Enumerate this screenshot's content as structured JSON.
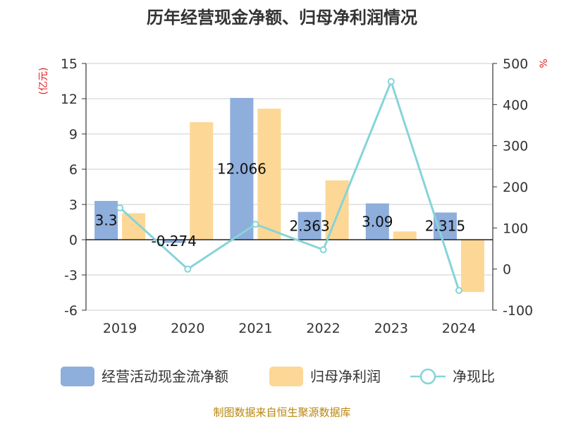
{
  "title": "历年经营现金净额、归母净利润情况",
  "source": "制图数据来自恒生聚源数据库",
  "chart_data": {
    "type": "bar",
    "categories": [
      "2019",
      "2020",
      "2021",
      "2022",
      "2023",
      "2024"
    ],
    "y_left": {
      "unit": "(亿元)",
      "ylim": [
        -6,
        15
      ],
      "ticks": [
        "15",
        "12",
        "9",
        "6",
        "3",
        "0",
        "-3",
        "-6"
      ],
      "tick_values": [
        15,
        12,
        9,
        6,
        3,
        0,
        -3,
        -6
      ]
    },
    "y_right": {
      "unit": "%",
      "ylim": [
        -100,
        500
      ],
      "ticks": [
        "500",
        "400",
        "300",
        "200",
        "100",
        "0",
        "-100"
      ],
      "tick_values": [
        500,
        400,
        300,
        200,
        100,
        0,
        -100
      ]
    },
    "series": [
      {
        "name": "经营活动现金流净额",
        "type": "bar",
        "axis": "left",
        "color": "#8eaedc",
        "values": [
          3.3,
          -0.274,
          12.066,
          2.363,
          3.09,
          2.315
        ],
        "labels": [
          "3.3",
          "-0.274",
          "12.066",
          "2.363",
          "3.09",
          "2.315"
        ]
      },
      {
        "name": "归母净利润",
        "type": "bar",
        "axis": "left",
        "color": "#fdd795",
        "values": [
          2.25,
          10.0,
          11.15,
          5.05,
          0.7,
          -4.45
        ]
      },
      {
        "name": "净现比",
        "type": "line",
        "axis": "right",
        "color": "#86d4d8",
        "values": [
          149,
          0,
          109,
          47,
          456,
          -52
        ]
      }
    ],
    "grid": true,
    "legend": "bottom"
  }
}
